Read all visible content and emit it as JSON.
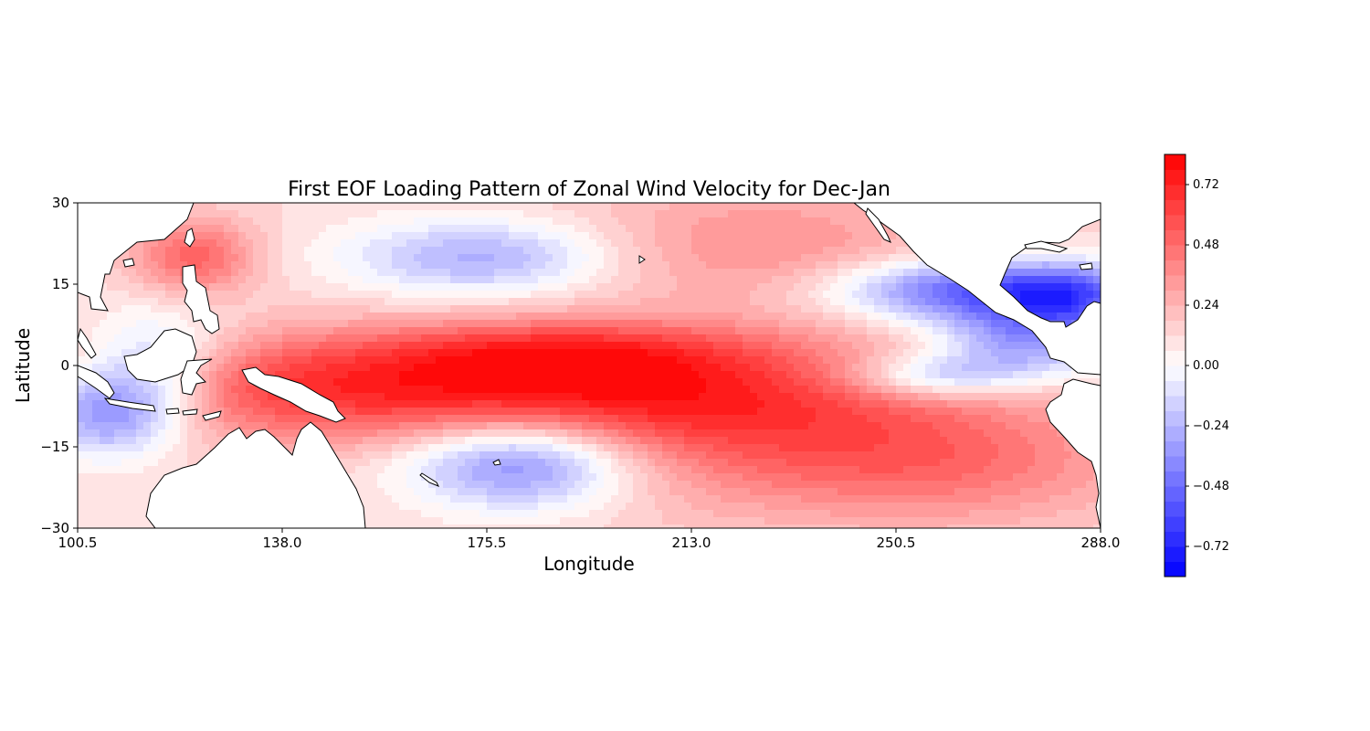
{
  "chart_data": {
    "type": "heatmap",
    "subtype": "filled-contour map",
    "title": "First EOF Loading Pattern of Zonal Wind Velocity for Dec-Jan",
    "xlabel": "Longitude",
    "ylabel": "Latitude",
    "xlim": [
      100.5,
      288.0
    ],
    "ylim": [
      -30,
      30
    ],
    "xticks": [
      100.5,
      138.0,
      175.5,
      213.0,
      250.5,
      288.0
    ],
    "xtick_labels": [
      "100.5",
      "138.0",
      "175.5",
      "213.0",
      "250.5",
      "288.0"
    ],
    "yticks": [
      30,
      15,
      0,
      -15,
      -30
    ],
    "ytick_labels": [
      "30",
      "15",
      "0",
      "−15",
      "−30"
    ],
    "colormap": "bwr",
    "colorbar": {
      "range": [
        -0.84,
        0.84
      ],
      "levels": 28,
      "ticks": [
        0.72,
        0.48,
        0.24,
        0.0,
        -0.24,
        -0.48,
        -0.72
      ],
      "tick_labels": [
        "0.72",
        "0.48",
        "0.24",
        "0.00",
        "−0.24",
        "−0.48",
        "−0.72"
      ]
    },
    "features": [
      {
        "lon": 165,
        "lat": -4,
        "sx": 55,
        "sy": 7,
        "value": 0.6
      },
      {
        "lon": 190,
        "lat": 3,
        "sx": 25,
        "sy": 4,
        "value": 0.3
      },
      {
        "lon": 218,
        "lat": -12,
        "sx": 30,
        "sy": 10,
        "value": 0.3
      },
      {
        "lon": 260,
        "lat": -18,
        "sx": 25,
        "sy": 8,
        "value": 0.3
      },
      {
        "lon": 225,
        "lat": 22,
        "sx": 25,
        "sy": 8,
        "value": 0.25
      },
      {
        "lon": 122,
        "lat": 20,
        "sx": 8,
        "sy": 5,
        "value": 0.4
      },
      {
        "lon": 175,
        "lat": 20,
        "sx": 18,
        "sy": 5,
        "value": -0.4
      },
      {
        "lon": 182,
        "lat": -18,
        "sx": 15,
        "sy": 6,
        "value": -0.6
      },
      {
        "lon": 265,
        "lat": 14,
        "sx": 18,
        "sy": 4,
        "value": -0.65
      },
      {
        "lon": 275,
        "lat": 5,
        "sx": 12,
        "sy": 5,
        "value": -0.5
      },
      {
        "lon": 258,
        "lat": -2,
        "sx": 12,
        "sy": 3,
        "value": -0.4
      },
      {
        "lon": 106,
        "lat": -8,
        "sx": 10,
        "sy": 6,
        "value": -0.65
      },
      {
        "lon": 115,
        "lat": 1,
        "sx": 10,
        "sy": 7,
        "value": -0.35
      },
      {
        "lon": 283,
        "lat": 13,
        "sx": 8,
        "sy": 4,
        "value": -0.35
      }
    ]
  }
}
